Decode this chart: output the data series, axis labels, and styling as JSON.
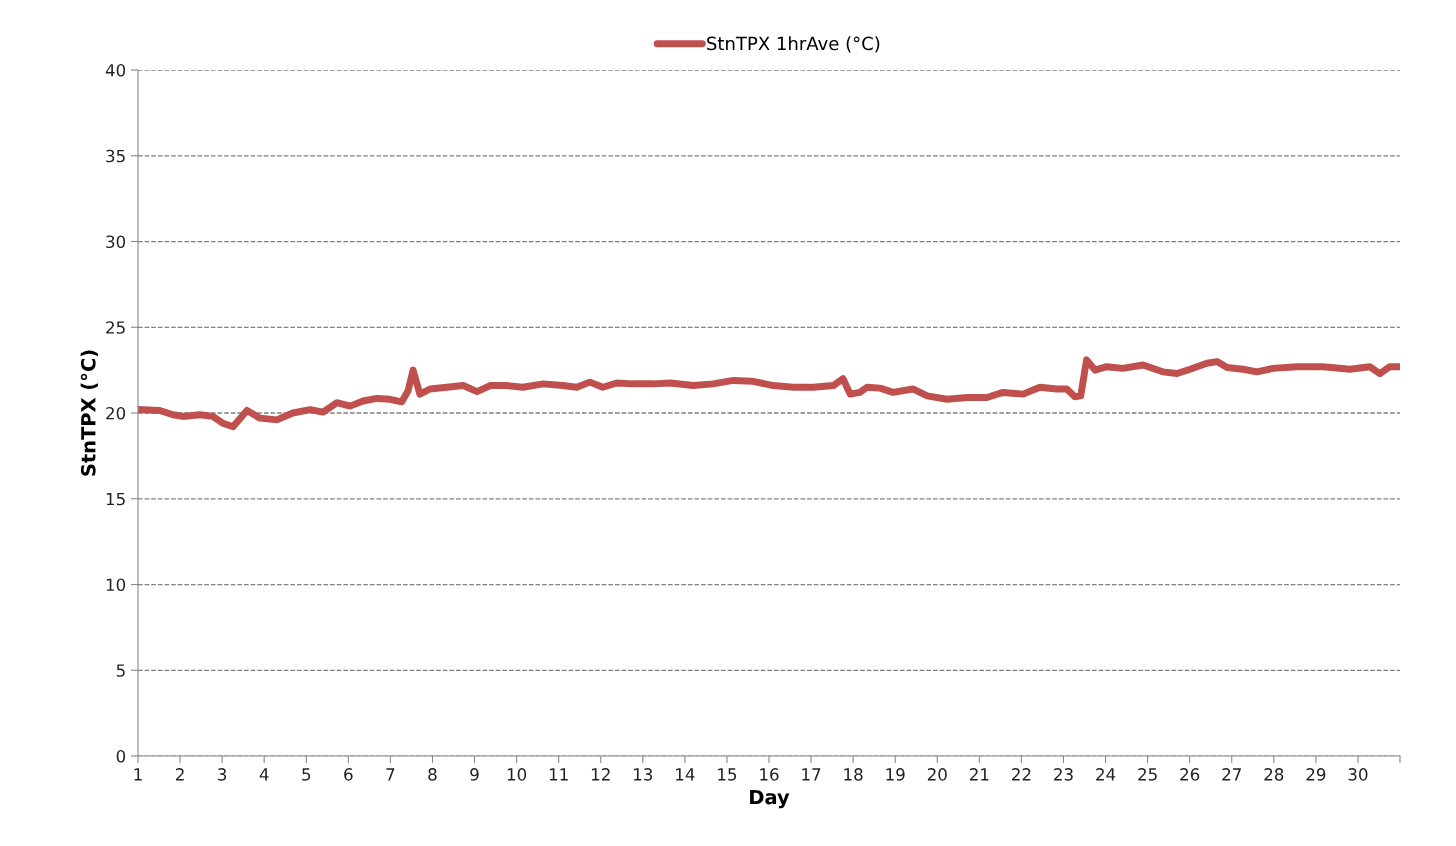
{
  "chart_data": {
    "type": "line",
    "xlabel": "Day",
    "ylabel": "StnTPX (°C)",
    "xlim": [
      1,
      31
    ],
    "xticks": [
      1,
      2,
      3,
      4,
      5,
      6,
      7,
      8,
      9,
      10,
      11,
      12,
      13,
      14,
      15,
      16,
      17,
      18,
      19,
      20,
      21,
      22,
      23,
      24,
      25,
      26,
      27,
      28,
      29,
      30,
      {
        "value": 31,
        "label": null
      }
    ],
    "ylim": [
      0,
      40
    ],
    "yticks": [
      0,
      5,
      10,
      15,
      20,
      25,
      30,
      35,
      40
    ],
    "grid": "y",
    "legend": "top",
    "marker": "none",
    "line_style": "solid",
    "series": [
      {
        "name": "StnTPX 1hrAve (°C)",
        "color": "#c0504d",
        "x": [
          1.0,
          1.52,
          1.83,
          2.07,
          2.47,
          2.78,
          3.02,
          3.26,
          3.59,
          3.9,
          4.3,
          4.68,
          5.09,
          5.4,
          5.73,
          6.04,
          6.35,
          6.68,
          6.99,
          7.27,
          7.42,
          7.54,
          7.7,
          7.94,
          8.34,
          8.73,
          9.06,
          9.37,
          9.77,
          10.15,
          10.63,
          11.1,
          11.43,
          11.74,
          12.05,
          12.38,
          12.77,
          13.24,
          13.65,
          14.2,
          14.67,
          15.15,
          15.62,
          16.1,
          16.58,
          17.05,
          17.53,
          17.76,
          17.93,
          18.16,
          18.33,
          18.64,
          18.95,
          19.42,
          19.76,
          20.23,
          20.71,
          21.18,
          21.56,
          22.04,
          22.44,
          22.84,
          23.08,
          23.27,
          23.41,
          23.55,
          23.75,
          24.03,
          24.41,
          24.89,
          25.36,
          25.7,
          26.01,
          26.41,
          26.65,
          26.89,
          27.27,
          27.6,
          27.98,
          28.55,
          29.17,
          29.81,
          30.28,
          30.52,
          30.76,
          31.0
        ],
        "values": [
          20.2,
          20.15,
          19.9,
          19.8,
          19.9,
          19.8,
          19.4,
          19.2,
          20.15,
          19.7,
          19.6,
          20.0,
          20.2,
          20.05,
          20.6,
          20.4,
          20.7,
          20.85,
          20.8,
          20.65,
          21.3,
          22.5,
          21.1,
          21.4,
          21.5,
          21.6,
          21.25,
          21.6,
          21.6,
          21.5,
          21.7,
          21.6,
          21.5,
          21.8,
          21.5,
          21.75,
          21.7,
          21.7,
          21.75,
          21.6,
          21.7,
          21.9,
          21.85,
          21.6,
          21.5,
          21.5,
          21.6,
          22.0,
          21.1,
          21.2,
          21.5,
          21.45,
          21.2,
          21.4,
          21.0,
          20.8,
          20.9,
          20.9,
          21.2,
          21.1,
          21.5,
          21.4,
          21.4,
          20.95,
          21.0,
          23.1,
          22.5,
          22.7,
          22.6,
          22.8,
          22.4,
          22.3,
          22.55,
          22.9,
          23.0,
          22.65,
          22.55,
          22.4,
          22.6,
          22.7,
          22.7,
          22.55,
          22.7,
          22.3,
          22.7,
          22.7
        ]
      }
    ]
  }
}
